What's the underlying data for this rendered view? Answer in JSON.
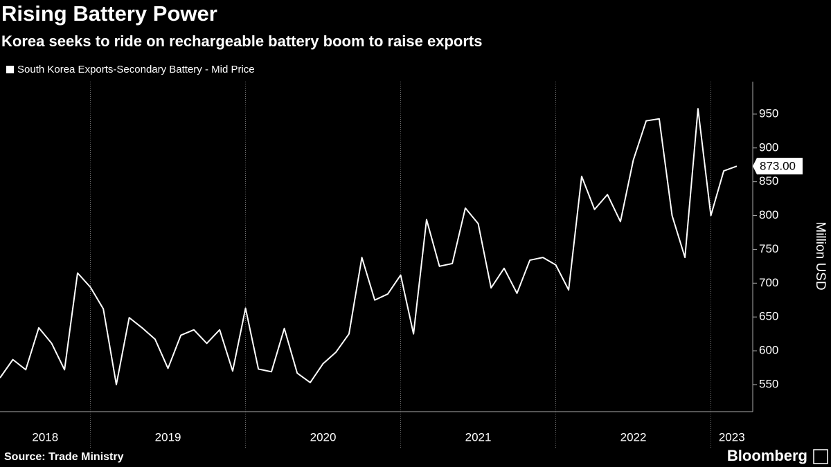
{
  "chart_data": {
    "type": "line",
    "title": "Rising Battery Power",
    "subtitle": "Korea seeks to ride on rechargeable battery boom to raise exports",
    "y_axis_label": "Million USD",
    "source": "Source: Trade Ministry",
    "brand": "Bloomberg",
    "x": [
      2018.417,
      2018.5,
      2018.583,
      2018.667,
      2018.75,
      2018.833,
      2018.917,
      2019,
      2019.083,
      2019.167,
      2019.25,
      2019.333,
      2019.417,
      2019.5,
      2019.583,
      2019.667,
      2019.75,
      2019.833,
      2019.917,
      2020,
      2020.083,
      2020.167,
      2020.25,
      2020.333,
      2020.417,
      2020.5,
      2020.583,
      2020.667,
      2020.75,
      2020.833,
      2020.917,
      2021,
      2021.083,
      2021.167,
      2021.25,
      2021.333,
      2021.417,
      2021.5,
      2021.583,
      2021.667,
      2021.75,
      2021.833,
      2021.917,
      2022,
      2022.083,
      2022.167,
      2022.25,
      2022.333,
      2022.417,
      2022.5,
      2022.583,
      2022.667,
      2022.75,
      2022.833,
      2022.917,
      2023,
      2023.083,
      2023.167
    ],
    "series": [
      {
        "name": "South Korea Exports-Secondary Battery - Mid Price",
        "color": "#ffffff",
        "values": [
          560,
          587,
          572,
          634,
          611,
          572,
          715,
          694,
          662,
          550,
          649,
          634,
          617,
          574,
          623,
          631,
          611,
          631,
          570,
          663,
          573,
          569,
          633,
          567,
          553,
          581,
          598,
          625,
          738,
          675,
          684,
          712,
          625,
          794,
          725,
          729,
          811,
          788,
          693,
          722,
          685,
          734,
          738,
          727,
          690,
          858,
          809,
          831,
          791,
          882,
          940,
          943,
          800,
          738,
          958,
          800,
          866,
          873
        ],
        "value_labels": [
          null,
          null,
          null,
          null,
          null,
          null,
          null,
          null,
          null,
          null,
          null,
          null,
          null,
          null,
          null,
          null,
          null,
          null,
          null,
          null,
          null,
          null,
          null,
          null,
          null,
          null,
          null,
          null,
          null,
          null,
          null,
          null,
          null,
          null,
          null,
          null,
          null,
          null,
          null,
          null,
          null,
          null,
          null,
          null,
          null,
          null,
          null,
          null,
          null,
          null,
          null,
          null,
          null,
          null,
          null,
          null,
          null,
          "873.00"
        ]
      }
    ],
    "xlim": [
      2018.417,
      2023.27
    ],
    "xticks": [
      2018,
      2019,
      2020,
      2021,
      2022,
      2023
    ],
    "ylim": [
      510,
      998
    ],
    "yticks": [
      550,
      600,
      650,
      700,
      750,
      800,
      850,
      900,
      950
    ],
    "grid": "x"
  }
}
